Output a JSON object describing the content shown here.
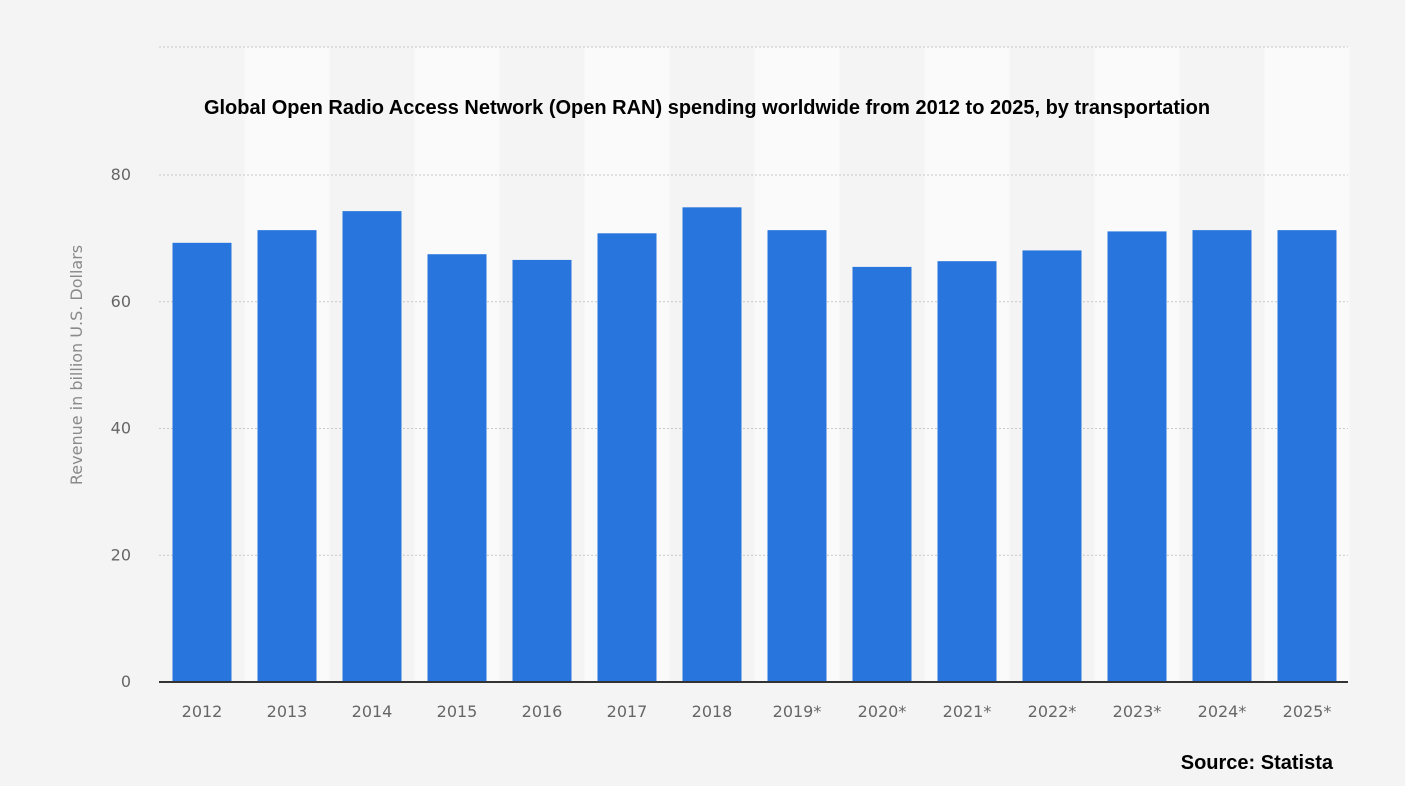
{
  "colors": {
    "background": "#f4f4f4",
    "column_band": "#fafafa",
    "bar": "#2876dd",
    "gridline": "#c8c8c8",
    "baseline": "#333333",
    "tick_text": "#666666"
  },
  "source": "Source: Statista",
  "chart_data": {
    "type": "bar",
    "title": "Global Open Radio Access Network (Open RAN) spending worldwide from 2012 to 2025, by transportation",
    "xlabel": "",
    "ylabel": "Revenue in billion U.S. Dollars",
    "ylim": [
      0,
      80
    ],
    "yticks": [
      0,
      20,
      40,
      60,
      80
    ],
    "grid": true,
    "categories": [
      "2012",
      "2013",
      "2014",
      "2015",
      "2016",
      "2017",
      "2018",
      "2019*",
      "2020*",
      "2021*",
      "2022*",
      "2023*",
      "2024*",
      "2025*"
    ],
    "values": [
      69.3,
      71.3,
      74.3,
      67.5,
      66.6,
      70.8,
      74.9,
      71.3,
      65.5,
      66.4,
      68.1,
      71.1,
      71.3,
      71.3
    ]
  }
}
